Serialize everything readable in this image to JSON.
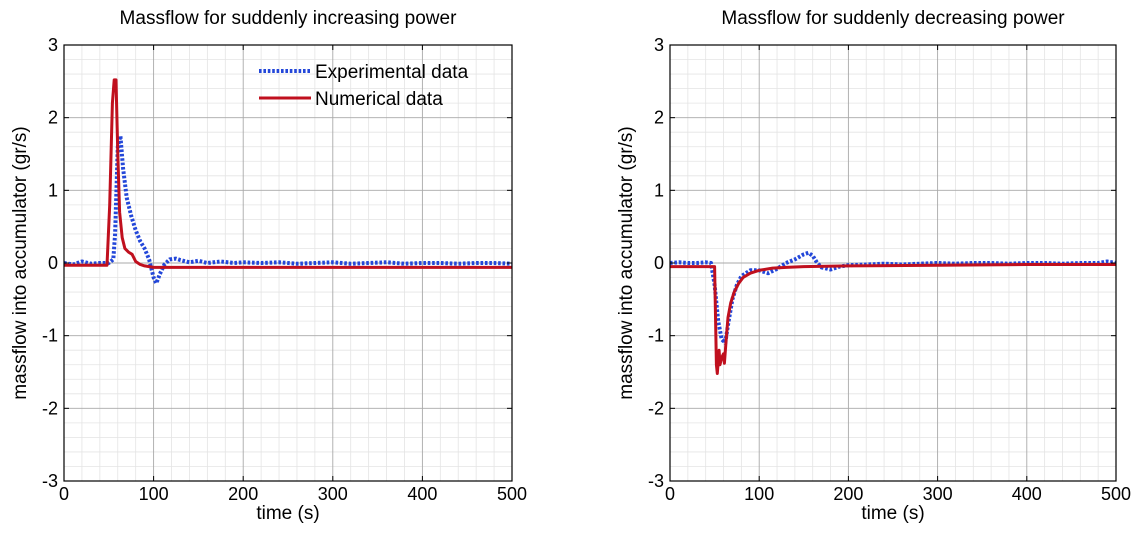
{
  "chart_data": [
    {
      "type": "line",
      "title": "Massflow for suddenly increasing power",
      "xlabel": "time (s)",
      "ylabel": "massflow into accumulator (gr/s)",
      "xlim": [
        0,
        500
      ],
      "ylim": [
        -3,
        3
      ],
      "xticks": [
        "0",
        "100",
        "200",
        "300",
        "400",
        "500"
      ],
      "yticks": [
        "-3",
        "-2",
        "-1",
        "0",
        "1",
        "2",
        "3"
      ],
      "grid": true,
      "minor_grid": true,
      "legend": "top-right",
      "series": [
        {
          "name": "Experimental data",
          "color": "#2347d9",
          "style": "dotted",
          "x": [
            0,
            10,
            20,
            30,
            40,
            50,
            55,
            57,
            60,
            63,
            66,
            70,
            75,
            80,
            85,
            90,
            95,
            100,
            103,
            107,
            112,
            118,
            125,
            130,
            140,
            150,
            160,
            175,
            190,
            200,
            220,
            240,
            260,
            280,
            300,
            320,
            340,
            360,
            380,
            400,
            420,
            440,
            460,
            480,
            500
          ],
          "y": [
            0.0,
            -0.02,
            0.02,
            -0.01,
            0.0,
            0.0,
            0.05,
            0.4,
            1.6,
            1.75,
            1.3,
            0.9,
            0.65,
            0.45,
            0.3,
            0.2,
            0.05,
            -0.2,
            -0.28,
            -0.15,
            -0.02,
            0.05,
            0.06,
            0.04,
            0.01,
            0.03,
            0.0,
            0.02,
            0.0,
            0.01,
            0.0,
            0.01,
            -0.01,
            0.0,
            0.01,
            -0.01,
            0.0,
            0.01,
            -0.01,
            0.0,
            0.0,
            -0.01,
            0.0,
            0.0,
            -0.01
          ]
        },
        {
          "name": "Numerical data",
          "color": "#c0101e",
          "style": "solid",
          "x": [
            0,
            48,
            51,
            54,
            56,
            58,
            60,
            62,
            65,
            68,
            72,
            76,
            80,
            85,
            90,
            95,
            100,
            110,
            130,
            200,
            300,
            400,
            500
          ],
          "y": [
            -0.03,
            -0.03,
            0.8,
            2.2,
            2.52,
            2.52,
            1.5,
            0.7,
            0.35,
            0.2,
            0.15,
            0.12,
            0.02,
            -0.02,
            -0.04,
            -0.05,
            -0.06,
            -0.06,
            -0.06,
            -0.06,
            -0.06,
            -0.06,
            -0.06
          ]
        }
      ]
    },
    {
      "type": "line",
      "title": "Massflow for suddenly decreasing power",
      "xlabel": "time (s)",
      "ylabel": "massflow into accumulator (gr/s)",
      "xlim": [
        0,
        500
      ],
      "ylim": [
        -3,
        3
      ],
      "xticks": [
        "0",
        "100",
        "200",
        "300",
        "400",
        "500"
      ],
      "yticks": [
        "-3",
        "-2",
        "-1",
        "0",
        "1",
        "2",
        "3"
      ],
      "grid": true,
      "minor_grid": true,
      "legend": "none",
      "series": [
        {
          "name": "Experimental data",
          "color": "#2347d9",
          "style": "dotted",
          "x": [
            0,
            10,
            20,
            30,
            40,
            46,
            50,
            54,
            58,
            62,
            65,
            70,
            75,
            80,
            90,
            100,
            110,
            120,
            130,
            140,
            150,
            155,
            160,
            165,
            170,
            180,
            190,
            200,
            220,
            240,
            260,
            280,
            300,
            320,
            340,
            360,
            380,
            400,
            420,
            440,
            460,
            480,
            490,
            500
          ],
          "y": [
            0.0,
            0.01,
            0.0,
            0.0,
            0.01,
            0.0,
            -0.3,
            -0.8,
            -1.05,
            -1.1,
            -0.85,
            -0.5,
            -0.3,
            -0.18,
            -0.1,
            -0.1,
            -0.14,
            -0.08,
            0.0,
            0.05,
            0.12,
            0.14,
            0.1,
            0.0,
            -0.06,
            -0.09,
            -0.05,
            -0.03,
            -0.02,
            -0.01,
            -0.02,
            -0.01,
            0.0,
            -0.01,
            0.0,
            0.0,
            -0.01,
            0.0,
            0.0,
            -0.01,
            0.0,
            0.0,
            0.02,
            0.0
          ]
        },
        {
          "name": "Numerical data",
          "color": "#c0101e",
          "style": "solid",
          "x": [
            0,
            50,
            52,
            53,
            55,
            56,
            58,
            60,
            61,
            63,
            65,
            68,
            72,
            77,
            82,
            90,
            100,
            115,
            130,
            150,
            200,
            300,
            400,
            500
          ],
          "y": [
            -0.05,
            -0.05,
            -1.4,
            -1.52,
            -1.2,
            -1.4,
            -1.3,
            -1.25,
            -1.38,
            -1.05,
            -0.75,
            -0.55,
            -0.4,
            -0.28,
            -0.2,
            -0.14,
            -0.1,
            -0.07,
            -0.06,
            -0.05,
            -0.04,
            -0.03,
            -0.02,
            -0.02
          ]
        }
      ]
    }
  ]
}
